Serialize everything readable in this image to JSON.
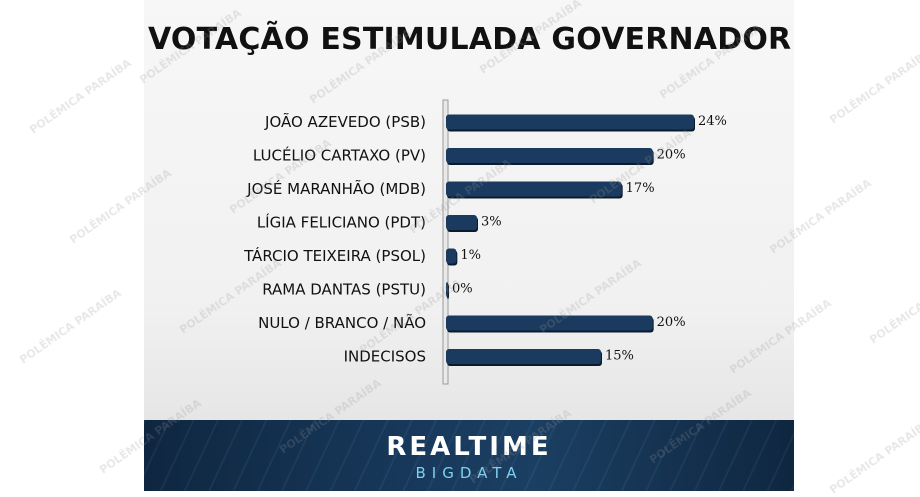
{
  "chart_data": {
    "type": "bar",
    "orientation": "horizontal",
    "title": "VOTAÇÃO ESTIMULADA GOVERNADOR",
    "categories": [
      "JOÃO AZEVEDO (PSB)",
      "LUCÉLIO CARTAXO (PV)",
      "JOSÉ MARANHÃO (MDB)",
      "LÍGIA FELICIANO (PDT)",
      "TÁRCIO TEIXEIRA (PSOL)",
      "RAMA DANTAS (PSTU)",
      "NULO / BRANCO / NÃO",
      "INDECISOS"
    ],
    "values": [
      24,
      20,
      17,
      3,
      1,
      0,
      20,
      15
    ],
    "data_labels": [
      "24%",
      "20%",
      "17%",
      "3%",
      "1%",
      "0%",
      "20%",
      "15%"
    ],
    "xlim": [
      0,
      24
    ],
    "grid": false,
    "bar_color": "#1a3b5f"
  },
  "footer": {
    "brand_main": "REALTIME",
    "brand_sub": "BIGDATA"
  },
  "watermark": {
    "text": "POLÊMICA PARAÍBA"
  }
}
